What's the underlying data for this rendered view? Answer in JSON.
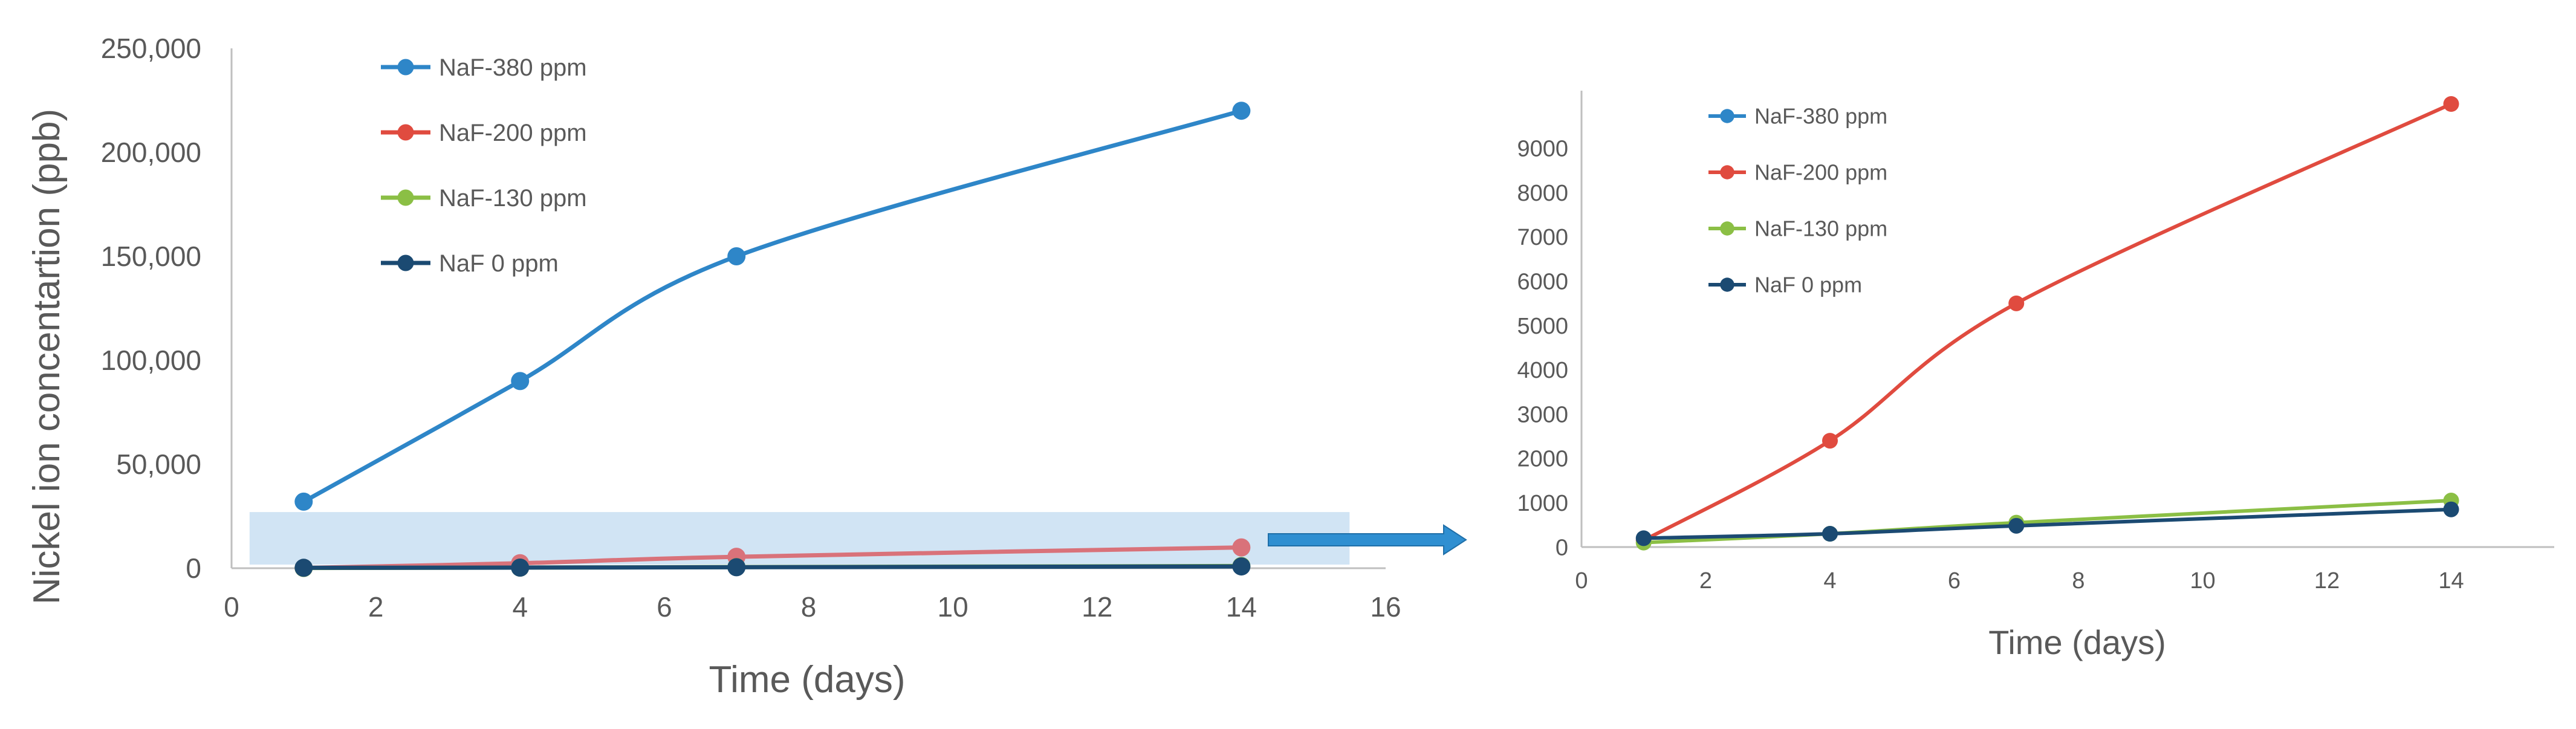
{
  "colors": {
    "naf380": "#2e86c8",
    "naf200": "#e04b3f",
    "naf200_under_overlay": "#d9727a",
    "naf130": "#8bbf45",
    "naf0": "#1b4a72",
    "axis": "#bfbfbf",
    "text": "#595959",
    "highlight": "#c9dff2",
    "arrow": "#2f8fd1"
  },
  "chart_data": [
    {
      "type": "line",
      "title": "",
      "xlabel": "Time (days)",
      "ylabel": "Nickel ion concentartion (ppb)",
      "xlim": [
        0,
        16
      ],
      "ylim": [
        0,
        250000
      ],
      "x_ticks": [
        "0",
        "2",
        "4",
        "6",
        "8",
        "10",
        "12",
        "14",
        "16"
      ],
      "y_ticks": [
        "0",
        "50,000",
        "100,000",
        "150,000",
        "200,000",
        "250,000"
      ],
      "grid": false,
      "legend_position": "top-left",
      "x": [
        1,
        4,
        7,
        14
      ],
      "series": [
        {
          "name": "NaF-380 ppm",
          "color_key": "naf380",
          "values": [
            32000,
            90000,
            150000,
            220000
          ]
        },
        {
          "name": "NaF-200 ppm",
          "color_key": "naf200_under_overlay",
          "values": [
            150,
            2400,
            5500,
            10000
          ]
        },
        {
          "name": "NaF-130 ppm",
          "color_key": "naf130",
          "values": [
            100,
            300,
            550,
            1050
          ]
        },
        {
          "name": "NaF 0 ppm",
          "color_key": "naf0",
          "values": [
            200,
            300,
            480,
            850
          ]
        }
      ],
      "highlight_region": {
        "x_range": [
          0.25,
          15.5
        ],
        "y_range": [
          0,
          27000
        ]
      }
    },
    {
      "type": "line",
      "title": "",
      "xlabel": "Time (days)",
      "ylabel": "",
      "xlim": [
        0,
        16
      ],
      "ylim": [
        0,
        10000
      ],
      "x_ticks": [
        "0",
        "2",
        "4",
        "6",
        "8",
        "10",
        "12",
        "14"
      ],
      "y_ticks": [
        "0",
        "1000",
        "2000",
        "3000",
        "4000",
        "5000",
        "6000",
        "7000",
        "8000",
        "9000"
      ],
      "grid": false,
      "legend_position": "top-left",
      "x": [
        1,
        4,
        7,
        14
      ],
      "series": [
        {
          "name": "NaF-380 ppm",
          "color_key": "naf380",
          "values": null
        },
        {
          "name": "NaF-200 ppm",
          "color_key": "naf200",
          "values": [
            150,
            2400,
            5500,
            10000
          ]
        },
        {
          "name": "NaF-130 ppm",
          "color_key": "naf130",
          "values": [
            100,
            300,
            550,
            1050
          ]
        },
        {
          "name": "NaF 0 ppm",
          "color_key": "naf0",
          "values": [
            200,
            300,
            480,
            850
          ]
        }
      ]
    }
  ]
}
